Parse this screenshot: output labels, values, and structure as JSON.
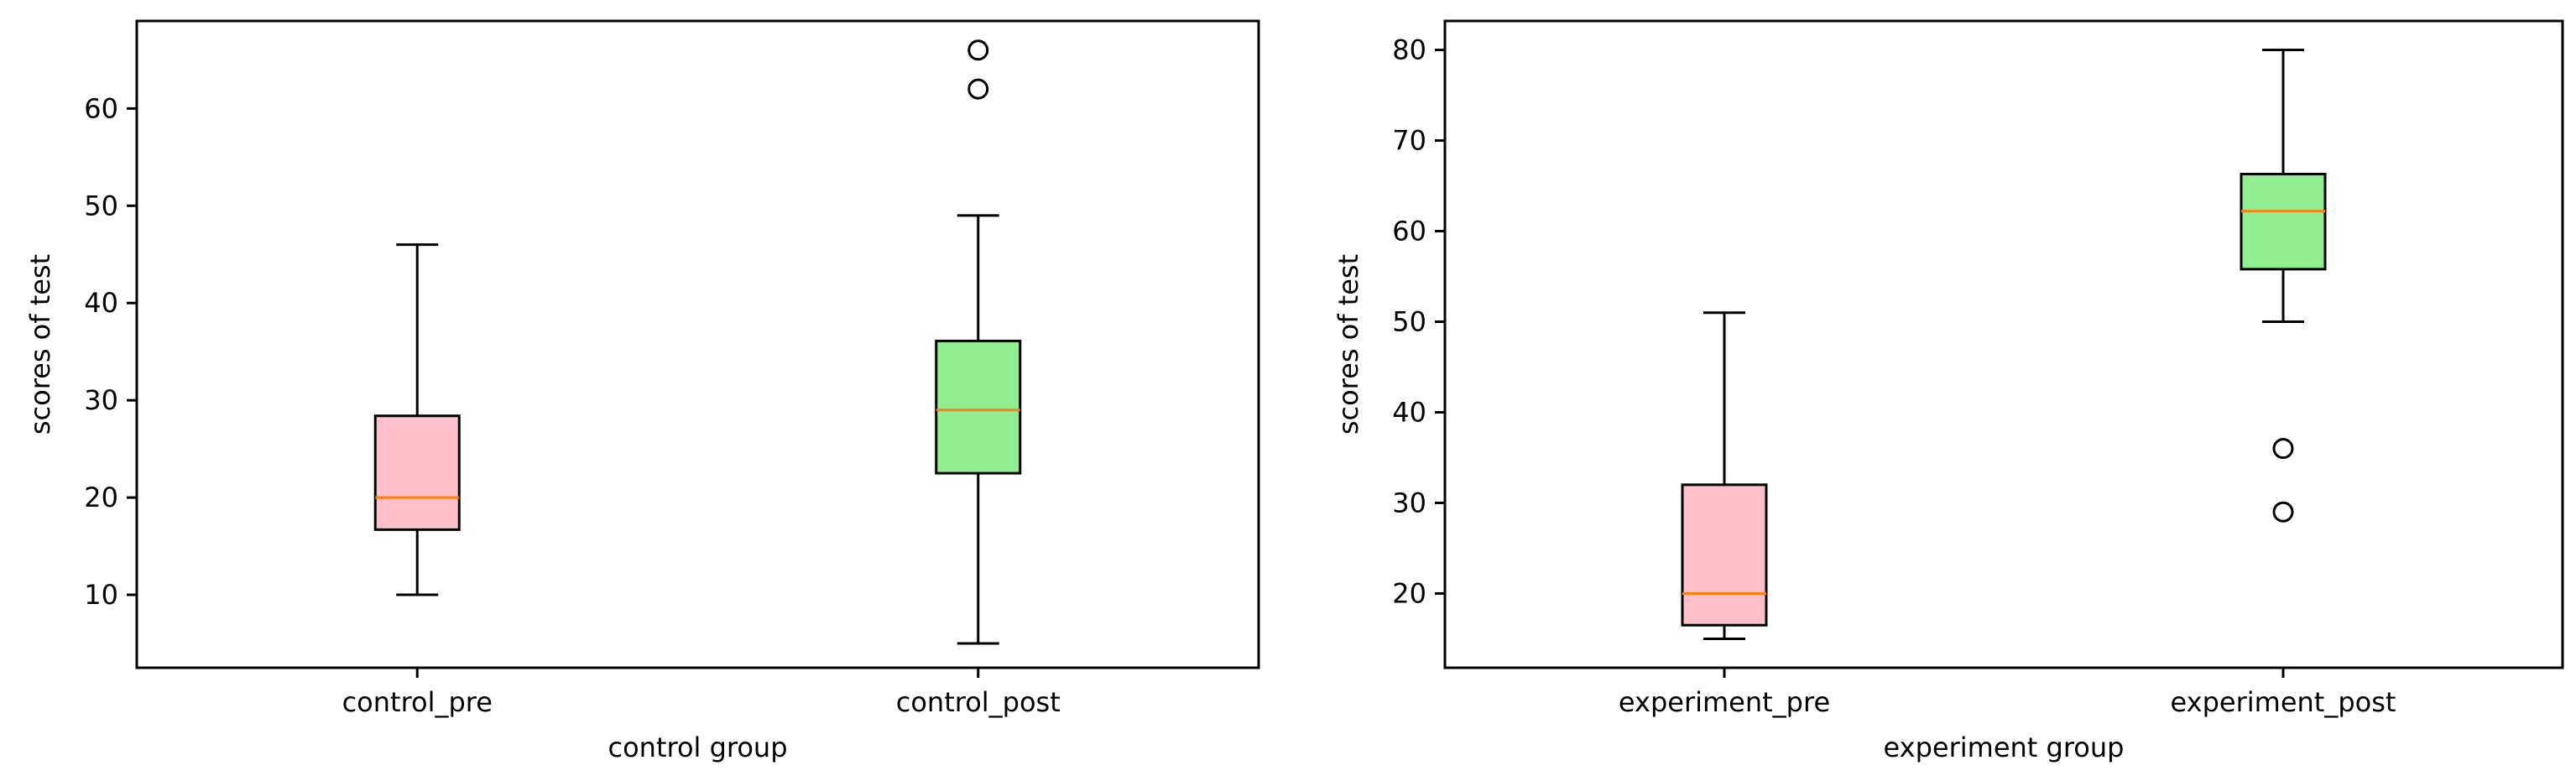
{
  "chart_data": [
    {
      "type": "box",
      "xlabel": "control group",
      "ylabel": "scores of test",
      "ylim": [
        2.5,
        69
      ],
      "yticks": [
        10,
        20,
        30,
        40,
        50,
        60
      ],
      "categories": [
        "control_pre",
        "control_post"
      ],
      "boxes": [
        {
          "name": "control_pre",
          "color": "#ffc0cb",
          "whisker_low": 10,
          "q1": 16.7,
          "median": 20,
          "q3": 28.4,
          "whisker_high": 46,
          "outliers": []
        },
        {
          "name": "control_post",
          "color": "#90ee90",
          "whisker_low": 5,
          "q1": 22.5,
          "median": 29,
          "q3": 36.1,
          "whisker_high": 49,
          "outliers": [
            62,
            66
          ]
        }
      ],
      "grid": false
    },
    {
      "type": "box",
      "xlabel": "experiment group",
      "ylabel": "scores of test",
      "ylim": [
        11.8,
        83.2
      ],
      "yticks": [
        20,
        30,
        40,
        50,
        60,
        70,
        80
      ],
      "categories": [
        "experiment_pre",
        "experiment_post"
      ],
      "boxes": [
        {
          "name": "experiment_pre",
          "color": "#ffc0cb",
          "whisker_low": 15,
          "q1": 16.5,
          "median": 20,
          "q3": 32,
          "whisker_high": 51,
          "outliers": []
        },
        {
          "name": "experiment_post",
          "color": "#90ee90",
          "whisker_low": 50,
          "q1": 55.8,
          "median": 62.2,
          "q3": 66.3,
          "whisker_high": 80,
          "outliers": [
            29,
            36
          ]
        }
      ],
      "grid": false
    }
  ],
  "colors": {
    "median_line": "#ff7f0e",
    "frame": "#000000"
  }
}
